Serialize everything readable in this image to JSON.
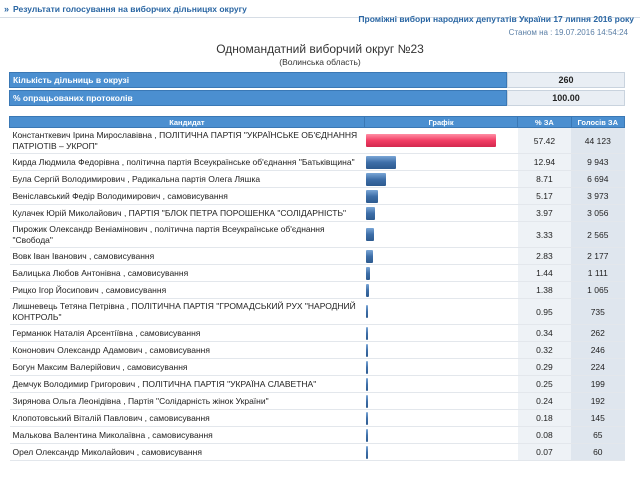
{
  "breadcrumb": {
    "arrow": "»",
    "text": "Результати голосування на виборчих дільницях округу"
  },
  "election_title": "Проміжні вибори народних депутатів України 17 липня 2016 року",
  "as_of": "Станом на : 19.07.2016 14:54:24",
  "district": {
    "title": "Одномандатний виборчий округ №23",
    "region": "(Волинська область)"
  },
  "summary": [
    {
      "label": "Кількість дільниць в окрузі",
      "value": "260"
    },
    {
      "label": "% опрацьованих протоколів",
      "value": "100.00"
    }
  ],
  "table": {
    "headers": {
      "candidate": "Кандидат",
      "graph": "Графік",
      "pct": "% ЗА",
      "votes": "Голосів ЗА"
    },
    "rows": [
      {
        "name": "Константкевич Ірина Мирославівна , ПОЛІТИЧНА ПАРТІЯ \"УКРАЇНСЬКЕ ОБ'ЄДНАННЯ ПАТРІОТІВ – УКРОП\"",
        "pct": "57.42",
        "votes": "44 123",
        "bar_pct": 57.42,
        "leader": true
      },
      {
        "name": "Кирда Людмила Федорівна , політична партія Всеукраїнське об'єднання \"Батьківщина\"",
        "pct": "12.94",
        "votes": "9 943",
        "bar_pct": 12.94
      },
      {
        "name": "Була Сергій Володимирович , Радикальна партія Олега Ляшка",
        "pct": "8.71",
        "votes": "6 694",
        "bar_pct": 8.71
      },
      {
        "name": "Веніславський Федір Володимирович , самовисування",
        "pct": "5.17",
        "votes": "3 973",
        "bar_pct": 5.17
      },
      {
        "name": "Кулачек Юрій Миколайович , ПАРТІЯ \"БЛОК ПЕТРА ПОРОШЕНКА \"СОЛІДАРНІСТЬ\"",
        "pct": "3.97",
        "votes": "3 056",
        "bar_pct": 3.97
      },
      {
        "name": "Пирожик Олександр Веніамінович , політична партія Всеукраїнське об'єднання \"Свобода\"",
        "pct": "3.33",
        "votes": "2 565",
        "bar_pct": 3.33
      },
      {
        "name": "Вовк Іван Іванович , самовисування",
        "pct": "2.83",
        "votes": "2 177",
        "bar_pct": 2.83
      },
      {
        "name": "Балицька Любов Антонівна , самовисування",
        "pct": "1.44",
        "votes": "1 111",
        "bar_pct": 1.44
      },
      {
        "name": "Рицко Ігор Йосипович , самовисування",
        "pct": "1.38",
        "votes": "1 065",
        "bar_pct": 1.38
      },
      {
        "name": "Лишневець Тетяна Петрівна , ПОЛІТИЧНА ПАРТІЯ \"ГРОМАДСЬКИЙ РУХ \"НАРОДНИЙ КОНТРОЛЬ\"",
        "pct": "0.95",
        "votes": "735",
        "bar_pct": 0.95
      },
      {
        "name": "Германюк Наталія Арсентіївна , самовисування",
        "pct": "0.34",
        "votes": "262",
        "bar_pct": 0.34
      },
      {
        "name": "Кононович Олександр Адамович , самовисування",
        "pct": "0.32",
        "votes": "246",
        "bar_pct": 0.32
      },
      {
        "name": "Богун Максим Валерійович , самовисування",
        "pct": "0.29",
        "votes": "224",
        "bar_pct": 0.29
      },
      {
        "name": "Демчук Володимир Григорович , ПОЛІТИЧНА ПАРТІЯ \"УКРАЇНА СЛАВЕТНА\"",
        "pct": "0.25",
        "votes": "199",
        "bar_pct": 0.25
      },
      {
        "name": "Зирянова Ольга Леонідівна , Партія \"Солідарність жінок України\"",
        "pct": "0.24",
        "votes": "192",
        "bar_pct": 0.24
      },
      {
        "name": "Клопотовський Віталій Павлович , самовисування",
        "pct": "0.18",
        "votes": "145",
        "bar_pct": 0.18
      },
      {
        "name": "Малькова Валентина Миколаївна , самовисування",
        "pct": "0.08",
        "votes": "65",
        "bar_pct": 0.08
      },
      {
        "name": "Орел Олександр Миколайович , самовисування",
        "pct": "0.07",
        "votes": "60",
        "bar_pct": 0.07
      }
    ]
  }
}
